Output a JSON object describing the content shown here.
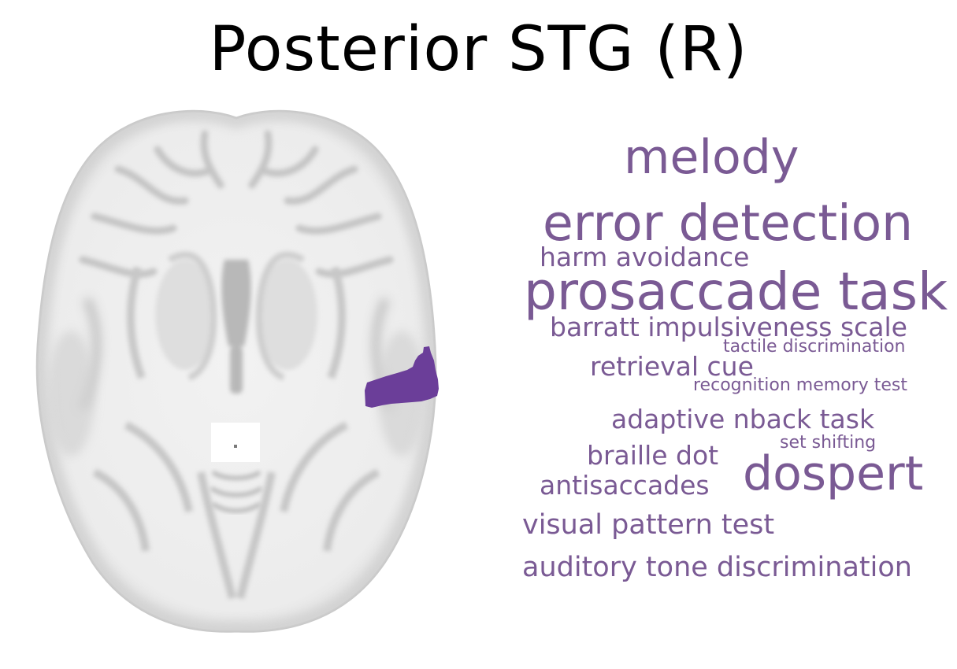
{
  "title": "Posterior STG (R)",
  "accent_color": "#7a5a94",
  "region_color": "#6b3e99",
  "terms": [
    {
      "text": "melody",
      "color": "#7a5a94"
    },
    {
      "text": "error detection",
      "color": "#7a5a94"
    },
    {
      "text": "harm avoidance",
      "color": "#7a5a94"
    },
    {
      "text": "prosaccade task",
      "color": "#7a5a94"
    },
    {
      "text": "barratt impulsiveness scale",
      "color": "#7a5a94"
    },
    {
      "text": "tactile discrimination",
      "color": "#7a5a94"
    },
    {
      "text": "retrieval cue",
      "color": "#7a5a94"
    },
    {
      "text": "recognition memory test",
      "color": "#7a5a94"
    },
    {
      "text": "adaptive nback task",
      "color": "#7a5a94"
    },
    {
      "text": "set shifting",
      "color": "#7a5a94"
    },
    {
      "text": "braille dot",
      "color": "#7a5a94"
    },
    {
      "text": "dospert",
      "color": "#7a5a94"
    },
    {
      "text": "antisaccades",
      "color": "#7a5a94"
    },
    {
      "text": "visual pattern test",
      "color": "#7a5a94"
    },
    {
      "text": "auditory tone discrimination",
      "color": "#7a5a94"
    }
  ]
}
